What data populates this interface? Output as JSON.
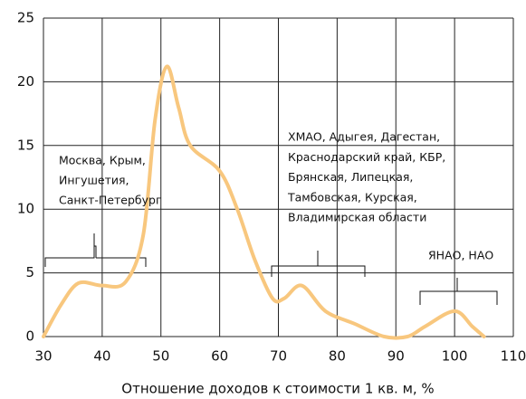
{
  "chart_data": {
    "type": "line",
    "x_label": "Отношение доходов к стоимости 1 кв. м, %",
    "x": [
      30,
      33,
      36,
      40,
      44,
      47,
      49,
      51,
      53,
      55,
      60,
      63,
      66,
      69,
      71,
      74,
      78,
      83,
      88,
      92,
      95,
      100,
      103,
      105
    ],
    "series": [
      {
        "color": "#f8c77e",
        "values": [
          0,
          2.5,
          4.2,
          4,
          4.3,
          8,
          17,
          21.2,
          18,
          15,
          13,
          10,
          6,
          3,
          3,
          4,
          2,
          1,
          0,
          0,
          0.8,
          2,
          0.8,
          0
        ]
      }
    ],
    "xlim": [
      30,
      110
    ],
    "xticks": [
      30,
      40,
      50,
      60,
      70,
      80,
      90,
      100,
      110
    ],
    "ylim": [
      0,
      25
    ],
    "yticks": [
      0,
      5,
      10,
      15,
      20,
      25
    ],
    "grid": true,
    "annotations": [
      {
        "lines": [
          "Москва, Крым,",
          "Ингушетия,",
          "Санкт-Петербург"
        ]
      },
      {
        "lines": [
          "ХМАО, Адыгея, Дагестан,",
          "Краснодарский край, КБР,",
          "Брянская, Липецкая,",
          "Тамбовская, Курская,",
          "Владимирская области"
        ]
      },
      {
        "lines": [
          "ЯНАО, НАО"
        ]
      }
    ]
  }
}
